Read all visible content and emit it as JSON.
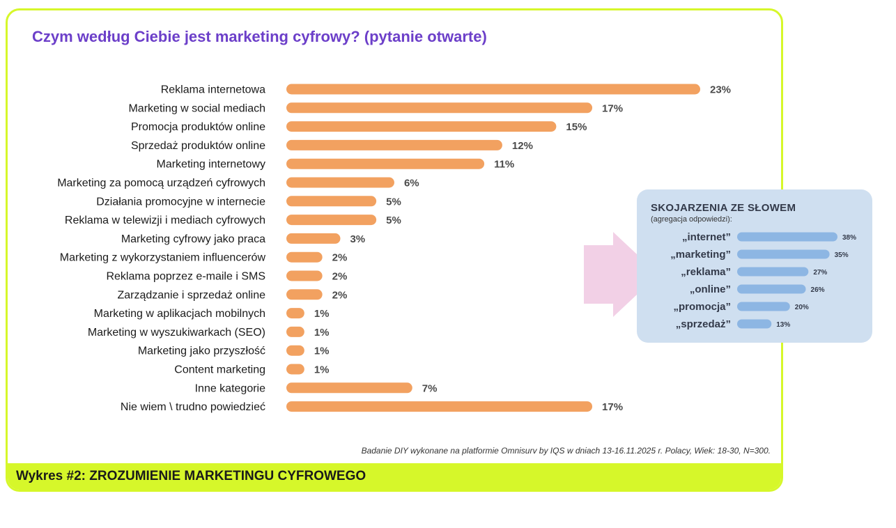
{
  "title": "Czym według Ciebie jest marketing cyfrowy? (pytanie otwarte)",
  "source_note": "Badanie DIY wykonane na platformie Omnisurv by IQS w dniach 13-16.11.2025 r.  Polacy, Wiek: 18-30, N=300.",
  "footer_title": "Wykres #2: ZROZUMIENIE MARKETINGU CYFROWEGO",
  "colors": {
    "accent": "#d6f72a",
    "title": "#6c3fc9",
    "bar": "#f2a160",
    "inset_bar": "#8db6e3",
    "inset_bg": "#cfdff0",
    "arrow": "#f2d0e6"
  },
  "chart_data": [
    {
      "type": "bar",
      "orientation": "horizontal",
      "categories": [
        "Reklama internetowa",
        "Marketing w social mediach",
        "Promocja produktów online",
        "Sprzedaż produktów online",
        "Marketing internetowy",
        "Marketing za pomocą urządzeń cyfrowych",
        "Działania promocyjne w internecie",
        "Reklama w telewizji i mediach cyfrowych",
        "Marketing cyfrowy jako praca",
        "Marketing z wykorzystaniem influencerów",
        "Reklama poprzez e-maile i SMS",
        "Zarządzanie i sprzedaż online",
        "Marketing w aplikacjach mobilnych",
        "Marketing w wyszukiwarkach (SEO)",
        "Marketing jako przyszłość",
        "Content marketing",
        "Inne kategorie",
        "Nie wiem \\ trudno powiedzieć"
      ],
      "values": [
        23,
        17,
        15,
        12,
        11,
        6,
        5,
        5,
        3,
        2,
        2,
        2,
        1,
        1,
        1,
        1,
        7,
        17
      ],
      "value_labels": [
        "23%",
        "17%",
        "15%",
        "12%",
        "11%",
        "6%",
        "5%",
        "5%",
        "3%",
        "2%",
        "2%",
        "2%",
        "1%",
        "1%",
        "1%",
        "1%",
        "7%",
        "17%"
      ],
      "xlim": [
        0,
        23
      ]
    },
    {
      "type": "bar",
      "orientation": "horizontal",
      "title": "SKOJARZENIA ZE SŁOWEM",
      "subtitle": "(agregacja odpowiedzi):",
      "categories": [
        "„internet”",
        "„marketing”",
        "„reklama”",
        "„online”",
        "„promocja”",
        "„sprzedaż”"
      ],
      "values": [
        38,
        35,
        27,
        26,
        20,
        13
      ],
      "value_labels": [
        "38%",
        "35%",
        "27%",
        "26%",
        "20%",
        "13%"
      ],
      "xlim": [
        0,
        38
      ]
    }
  ]
}
